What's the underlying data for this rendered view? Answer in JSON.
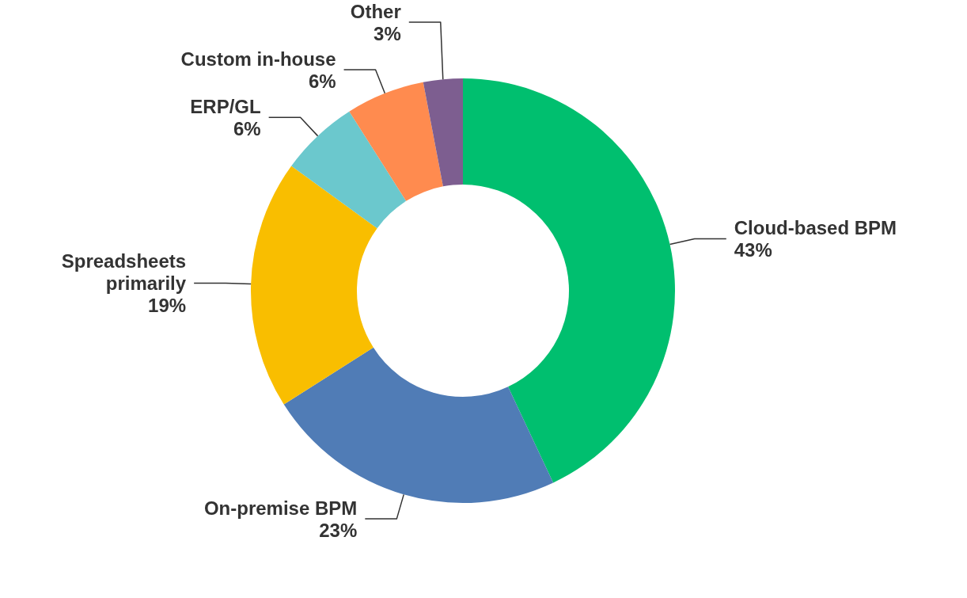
{
  "chart_data": {
    "type": "donut",
    "categories": [
      "Cloud-based BPM",
      "On-premise BPM",
      "Spreadsheets primarily",
      "ERP/GL",
      "Custom in-house",
      "Other"
    ],
    "values": [
      43,
      23,
      19,
      6,
      6,
      3
    ],
    "colors": [
      "#00bf6f",
      "#507cb6",
      "#f9be00",
      "#6bc8cd",
      "#ff8b4f",
      "#7d5e90"
    ],
    "value_labels": [
      "43%",
      "23%",
      "19%",
      "6%",
      "6%",
      "3%"
    ],
    "legend": false
  }
}
